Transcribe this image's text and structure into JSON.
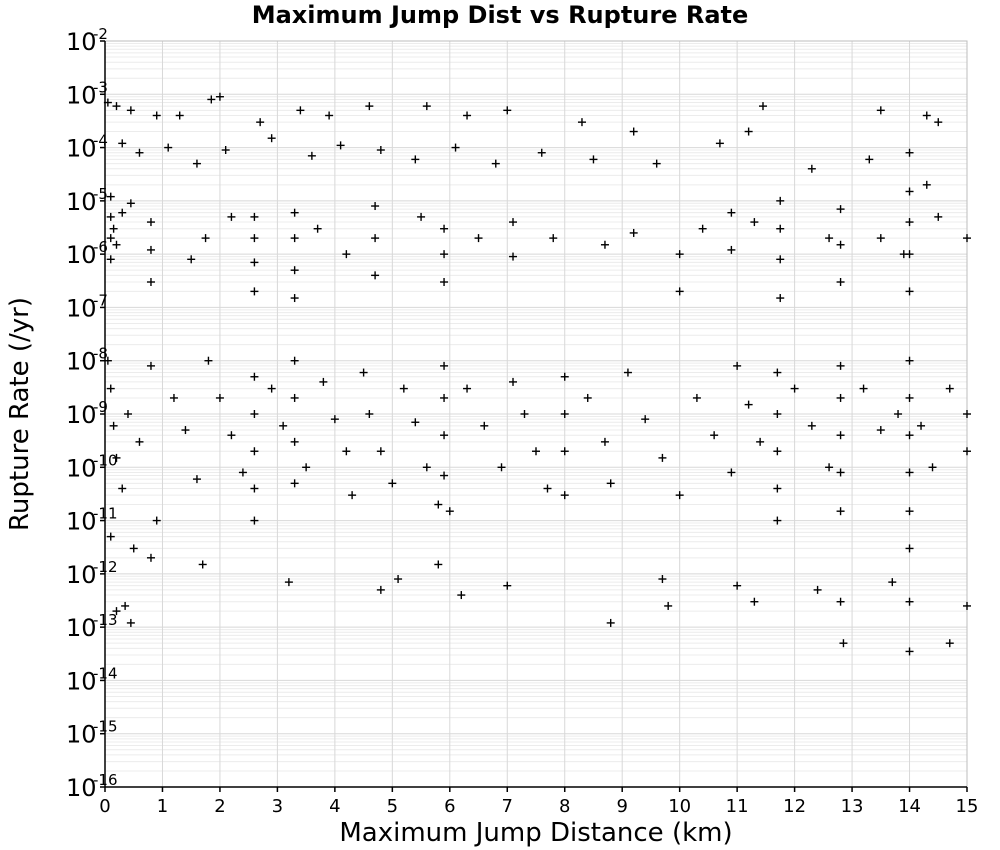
{
  "chart_data": {
    "type": "scatter",
    "title": "Maximum Jump Dist vs Rupture Rate",
    "xlabel": "Maximum Jump Distance (km)",
    "ylabel": "Rupture Rate (/yr)",
    "xlim": [
      0,
      15
    ],
    "ylim": [
      1e-16,
      0.01
    ],
    "yscale": "log",
    "grid": true,
    "marker": "plus",
    "xticks": [
      "0",
      "1",
      "2",
      "3",
      "4",
      "5",
      "6",
      "7",
      "8",
      "9",
      "10",
      "11",
      "12",
      "13",
      "14",
      "15"
    ],
    "yticks": [
      {
        "base": "10",
        "exp": "-2"
      },
      {
        "base": "10",
        "exp": "-3"
      },
      {
        "base": "10",
        "exp": "-4"
      },
      {
        "base": "10",
        "exp": "-5"
      },
      {
        "base": "10",
        "exp": "-6"
      },
      {
        "base": "10",
        "exp": "-7"
      },
      {
        "base": "10",
        "exp": "-8"
      },
      {
        "base": "10",
        "exp": "-9"
      },
      {
        "base": "10",
        "exp": "-10"
      },
      {
        "base": "10",
        "exp": "-11"
      },
      {
        "base": "10",
        "exp": "-12"
      },
      {
        "base": "10",
        "exp": "-13"
      },
      {
        "base": "10",
        "exp": "-14"
      },
      {
        "base": "10",
        "exp": "-15"
      },
      {
        "base": "10",
        "exp": "-16"
      }
    ],
    "series": [
      {
        "points": [
          [
            0.05,
            0.0007
          ],
          [
            0.2,
            0.0006
          ],
          [
            0.45,
            0.0005
          ],
          [
            0.9,
            0.0004
          ],
          [
            1.3,
            0.0004
          ],
          [
            1.85,
            0.0008
          ],
          [
            2.0,
            0.0009
          ],
          [
            2.7,
            0.0003
          ],
          [
            3.4,
            0.0005
          ],
          [
            3.9,
            0.0004
          ],
          [
            4.6,
            0.0006
          ],
          [
            5.6,
            0.0006
          ],
          [
            6.3,
            0.0004
          ],
          [
            7.0,
            0.0005
          ],
          [
            8.3,
            0.0003
          ],
          [
            9.2,
            0.0002
          ],
          [
            11.2,
            0.0002
          ],
          [
            11.45,
            0.0006
          ],
          [
            13.5,
            0.0005
          ],
          [
            14.3,
            0.0004
          ],
          [
            14.5,
            0.0003
          ],
          [
            0.3,
            0.00012
          ],
          [
            0.6,
            8e-05
          ],
          [
            1.1,
            0.0001
          ],
          [
            1.6,
            5e-05
          ],
          [
            2.1,
            9e-05
          ],
          [
            2.9,
            0.00015
          ],
          [
            3.6,
            7e-05
          ],
          [
            4.1,
            0.00011
          ],
          [
            4.8,
            9e-05
          ],
          [
            5.4,
            6e-05
          ],
          [
            6.1,
            0.0001
          ],
          [
            6.8,
            5e-05
          ],
          [
            7.6,
            8e-05
          ],
          [
            8.5,
            6e-05
          ],
          [
            9.6,
            5e-05
          ],
          [
            10.7,
            0.00012
          ],
          [
            12.3,
            4e-05
          ],
          [
            13.3,
            6e-05
          ],
          [
            14.0,
            8e-05
          ],
          [
            0.1,
            1.2e-05
          ],
          [
            0.1,
            5e-06
          ],
          [
            0.1,
            2e-06
          ],
          [
            0.1,
            8e-07
          ],
          [
            0.15,
            3e-06
          ],
          [
            0.2,
            1.5e-06
          ],
          [
            0.3,
            6e-06
          ],
          [
            0.45,
            9e-06
          ],
          [
            0.8,
            4e-06
          ],
          [
            0.8,
            1.2e-06
          ],
          [
            0.8,
            3e-07
          ],
          [
            1.5,
            8e-07
          ],
          [
            1.75,
            2e-06
          ],
          [
            2.2,
            5e-06
          ],
          [
            2.6,
            5e-06
          ],
          [
            2.6,
            2e-06
          ],
          [
            2.6,
            7e-07
          ],
          [
            2.6,
            2e-07
          ],
          [
            3.3,
            6e-06
          ],
          [
            3.3,
            2e-06
          ],
          [
            3.3,
            5e-07
          ],
          [
            3.3,
            1.5e-07
          ],
          [
            3.7,
            3e-06
          ],
          [
            4.2,
            1e-06
          ],
          [
            4.7,
            8e-06
          ],
          [
            4.7,
            2e-06
          ],
          [
            4.7,
            4e-07
          ],
          [
            5.5,
            5e-06
          ],
          [
            5.9,
            3e-06
          ],
          [
            5.9,
            1e-06
          ],
          [
            5.9,
            3e-07
          ],
          [
            6.5,
            2e-06
          ],
          [
            7.1,
            4e-06
          ],
          [
            7.1,
            9e-07
          ],
          [
            7.8,
            2e-06
          ],
          [
            8.7,
            1.5e-06
          ],
          [
            9.2,
            2.5e-06
          ],
          [
            10.0,
            1e-06
          ],
          [
            10.0,
            2e-07
          ],
          [
            10.4,
            3e-06
          ],
          [
            10.9,
            6e-06
          ],
          [
            10.9,
            1.2e-06
          ],
          [
            11.3,
            4e-06
          ],
          [
            11.75,
            1e-05
          ],
          [
            11.75,
            3e-06
          ],
          [
            11.75,
            8e-07
          ],
          [
            11.75,
            1.5e-07
          ],
          [
            12.6,
            2e-06
          ],
          [
            12.8,
            7e-06
          ],
          [
            12.8,
            1.5e-06
          ],
          [
            12.8,
            3e-07
          ],
          [
            13.5,
            2e-06
          ],
          [
            13.9,
            1e-06
          ],
          [
            14.0,
            1.5e-05
          ],
          [
            14.0,
            4e-06
          ],
          [
            14.0,
            1e-06
          ],
          [
            14.0,
            2e-07
          ],
          [
            14.3,
            2e-05
          ],
          [
            14.5,
            5e-06
          ],
          [
            15.0,
            2e-06
          ],
          [
            0.05,
            1e-08
          ],
          [
            0.1,
            3e-09
          ],
          [
            0.15,
            6e-10
          ],
          [
            0.2,
            1.5e-10
          ],
          [
            0.3,
            4e-11
          ],
          [
            0.4,
            1e-09
          ],
          [
            0.6,
            3e-10
          ],
          [
            0.8,
            8e-09
          ],
          [
            0.9,
            1e-11
          ],
          [
            1.2,
            2e-09
          ],
          [
            1.4,
            5e-10
          ],
          [
            1.6,
            6e-11
          ],
          [
            1.8,
            1e-08
          ],
          [
            2.0,
            2e-09
          ],
          [
            2.2,
            4e-10
          ],
          [
            2.4,
            8e-11
          ],
          [
            2.6,
            5e-09
          ],
          [
            2.6,
            1e-09
          ],
          [
            2.6,
            2e-10
          ],
          [
            2.6,
            4e-11
          ],
          [
            2.6,
            1e-11
          ],
          [
            2.9,
            3e-09
          ],
          [
            3.1,
            6e-10
          ],
          [
            3.3,
            1e-08
          ],
          [
            3.3,
            2e-09
          ],
          [
            3.3,
            3e-10
          ],
          [
            3.3,
            5e-11
          ],
          [
            3.5,
            1e-10
          ],
          [
            3.8,
            4e-09
          ],
          [
            4.0,
            8e-10
          ],
          [
            4.2,
            2e-10
          ],
          [
            4.3,
            3e-11
          ],
          [
            4.5,
            6e-09
          ],
          [
            4.6,
            1e-09
          ],
          [
            4.8,
            2e-10
          ],
          [
            5.0,
            5e-11
          ],
          [
            5.2,
            3e-09
          ],
          [
            5.4,
            7e-10
          ],
          [
            5.6,
            1e-10
          ],
          [
            5.8,
            2e-11
          ],
          [
            5.9,
            8e-09
          ],
          [
            5.9,
            2e-09
          ],
          [
            5.9,
            4e-10
          ],
          [
            5.9,
            7e-11
          ],
          [
            6.0,
            1.5e-11
          ],
          [
            6.3,
            3e-09
          ],
          [
            6.6,
            6e-10
          ],
          [
            6.9,
            1e-10
          ],
          [
            7.1,
            4e-09
          ],
          [
            7.3,
            1e-09
          ],
          [
            7.5,
            2e-10
          ],
          [
            7.7,
            4e-11
          ],
          [
            8.0,
            5e-09
          ],
          [
            8.0,
            1e-09
          ],
          [
            8.0,
            2e-10
          ],
          [
            8.0,
            3e-11
          ],
          [
            8.4,
            2e-09
          ],
          [
            8.7,
            3e-10
          ],
          [
            8.8,
            5e-11
          ],
          [
            9.1,
            6e-09
          ],
          [
            9.4,
            8e-10
          ],
          [
            9.7,
            1.5e-10
          ],
          [
            10.0,
            3e-11
          ],
          [
            10.3,
            2e-09
          ],
          [
            10.6,
            4e-10
          ],
          [
            10.9,
            8e-11
          ],
          [
            11.0,
            8e-09
          ],
          [
            11.2,
            1.5e-09
          ],
          [
            11.4,
            3e-10
          ],
          [
            11.7,
            6e-09
          ],
          [
            11.7,
            1e-09
          ],
          [
            11.7,
            2e-10
          ],
          [
            11.7,
            4e-11
          ],
          [
            11.7,
            1e-11
          ],
          [
            12.0,
            3e-09
          ],
          [
            12.3,
            6e-10
          ],
          [
            12.6,
            1e-10
          ],
          [
            12.8,
            8e-09
          ],
          [
            12.8,
            2e-09
          ],
          [
            12.8,
            4e-10
          ],
          [
            12.8,
            8e-11
          ],
          [
            12.8,
            1.5e-11
          ],
          [
            13.2,
            3e-09
          ],
          [
            13.5,
            5e-10
          ],
          [
            13.8,
            1e-09
          ],
          [
            14.0,
            1e-08
          ],
          [
            14.0,
            2e-09
          ],
          [
            14.0,
            4e-10
          ],
          [
            14.0,
            8e-11
          ],
          [
            14.0,
            1.5e-11
          ],
          [
            14.0,
            3e-12
          ],
          [
            14.2,
            6e-10
          ],
          [
            14.4,
            1e-10
          ],
          [
            14.7,
            3e-09
          ],
          [
            15.0,
            1e-09
          ],
          [
            15.0,
            2e-10
          ],
          [
            0.1,
            5e-12
          ],
          [
            0.5,
            3e-12
          ],
          [
            0.8,
            2e-12
          ],
          [
            1.7,
            1.5e-12
          ],
          [
            3.2,
            7e-13
          ],
          [
            4.8,
            5e-13
          ],
          [
            5.1,
            8e-13
          ],
          [
            5.8,
            1.5e-12
          ],
          [
            6.2,
            4e-13
          ],
          [
            7.0,
            6e-13
          ],
          [
            8.8,
            1.2e-13
          ],
          [
            9.7,
            8e-13
          ],
          [
            9.8,
            2.5e-13
          ],
          [
            11.0,
            6e-13
          ],
          [
            11.3,
            3e-13
          ],
          [
            12.4,
            5e-13
          ],
          [
            12.8,
            3e-13
          ],
          [
            12.85,
            5e-14
          ],
          [
            13.7,
            7e-13
          ],
          [
            14.0,
            3e-13
          ],
          [
            14.0,
            3.5e-14
          ],
          [
            14.7,
            5e-14
          ],
          [
            15.0,
            2.5e-13
          ],
          [
            0.2,
            2e-13
          ],
          [
            0.45,
            1.2e-13
          ],
          [
            0.35,
            2.5e-13
          ]
        ]
      }
    ]
  }
}
